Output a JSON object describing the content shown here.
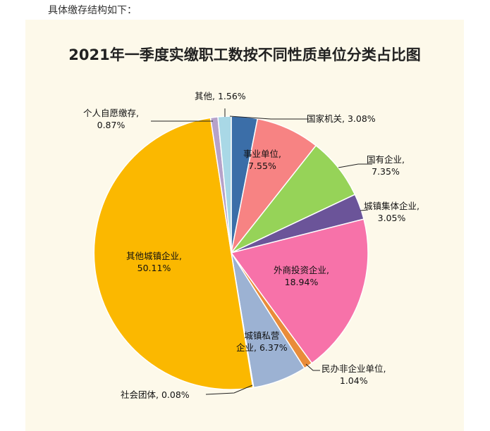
{
  "intro_text": "具体缴存结构如下：",
  "chart_data": {
    "type": "pie",
    "title": "2021年一季度实缴职工数按不同性质单位分类占比图",
    "slices": [
      {
        "name": "国家机关",
        "label": "国家机关, 3.08%",
        "value": 3.08,
        "color": "#3b6ea8"
      },
      {
        "name": "事业单位",
        "label_line1": "事业单位,",
        "label_line2": "7.55%",
        "value": 7.55,
        "color": "#f78383"
      },
      {
        "name": "国有企业",
        "label_line1": "国有企业,",
        "label_line2": "7.35%",
        "value": 7.35,
        "color": "#96d358"
      },
      {
        "name": "城镇集体企业",
        "label_line1": "城镇集体企业,",
        "label_line2": "3.05%",
        "value": 3.05,
        "color": "#6b5499"
      },
      {
        "name": "外商投资企业",
        "label_line1": "外商投资企业,",
        "label_line2": "18.94%",
        "value": 18.94,
        "color": "#f772a9"
      },
      {
        "name": "民办非企业单位",
        "label_line1": "民办非企业单位,",
        "label_line2": "1.04%",
        "value": 1.04,
        "color": "#e98c3a"
      },
      {
        "name": "城镇私营企业",
        "label_line1": "城镇私营",
        "label_line2": "企业, 6.37%",
        "value": 6.37,
        "color": "#9cb2d3"
      },
      {
        "name": "社会团体",
        "label": "社会团体, 0.08%",
        "value": 0.08,
        "color": "#d7c06a"
      },
      {
        "name": "其他城镇企业",
        "label_line1": "其他城镇企业,",
        "label_line2": "50.11%",
        "value": 50.11,
        "color": "#fbb800"
      },
      {
        "name": "个人自愿缴存",
        "label_line1": "个人自愿缴存,",
        "label_line2": "0.87%",
        "value": 0.87,
        "color": "#b6a2c9"
      },
      {
        "name": "其他",
        "label": "其他, 1.56%",
        "value": 1.56,
        "color": "#a9d8e6"
      }
    ]
  }
}
